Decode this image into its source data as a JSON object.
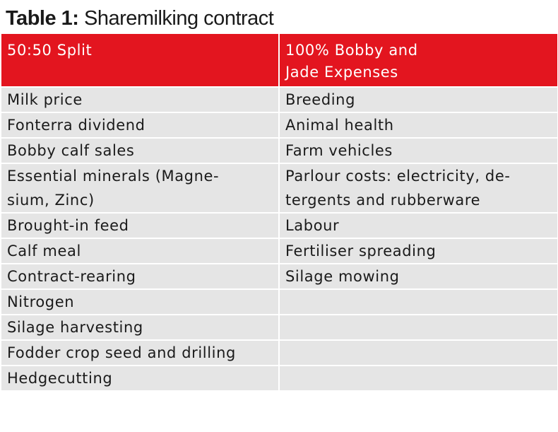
{
  "title": {
    "label": "Table 1:",
    "text": "Sharemilking contract"
  },
  "table": {
    "headers": [
      "50:50 Split",
      "100% Bobby and\nJade Expenses"
    ],
    "rows": [
      [
        "Milk price",
        "Breeding"
      ],
      [
        "Fonterra dividend",
        "Animal health"
      ],
      [
        "Bobby calf sales",
        "Farm vehicles"
      ],
      [
        "Essential minerals (Magne-\nsium, Zinc)",
        "Parlour costs: electricity, de-\ntergents and rubberware"
      ],
      [
        "Brought-in feed",
        "Labour"
      ],
      [
        "Calf meal",
        "Fertiliser spreading"
      ],
      [
        "Contract-rearing",
        "Silage mowing"
      ],
      [
        "Nitrogen",
        ""
      ],
      [
        "Silage harvesting",
        ""
      ],
      [
        "Fodder crop seed and drilling",
        ""
      ],
      [
        "Hedgecutting",
        ""
      ]
    ]
  },
  "colors": {
    "header_bg": "#e3151f",
    "row_bg": "#e5e5e5",
    "header_text": "#ffffff"
  }
}
